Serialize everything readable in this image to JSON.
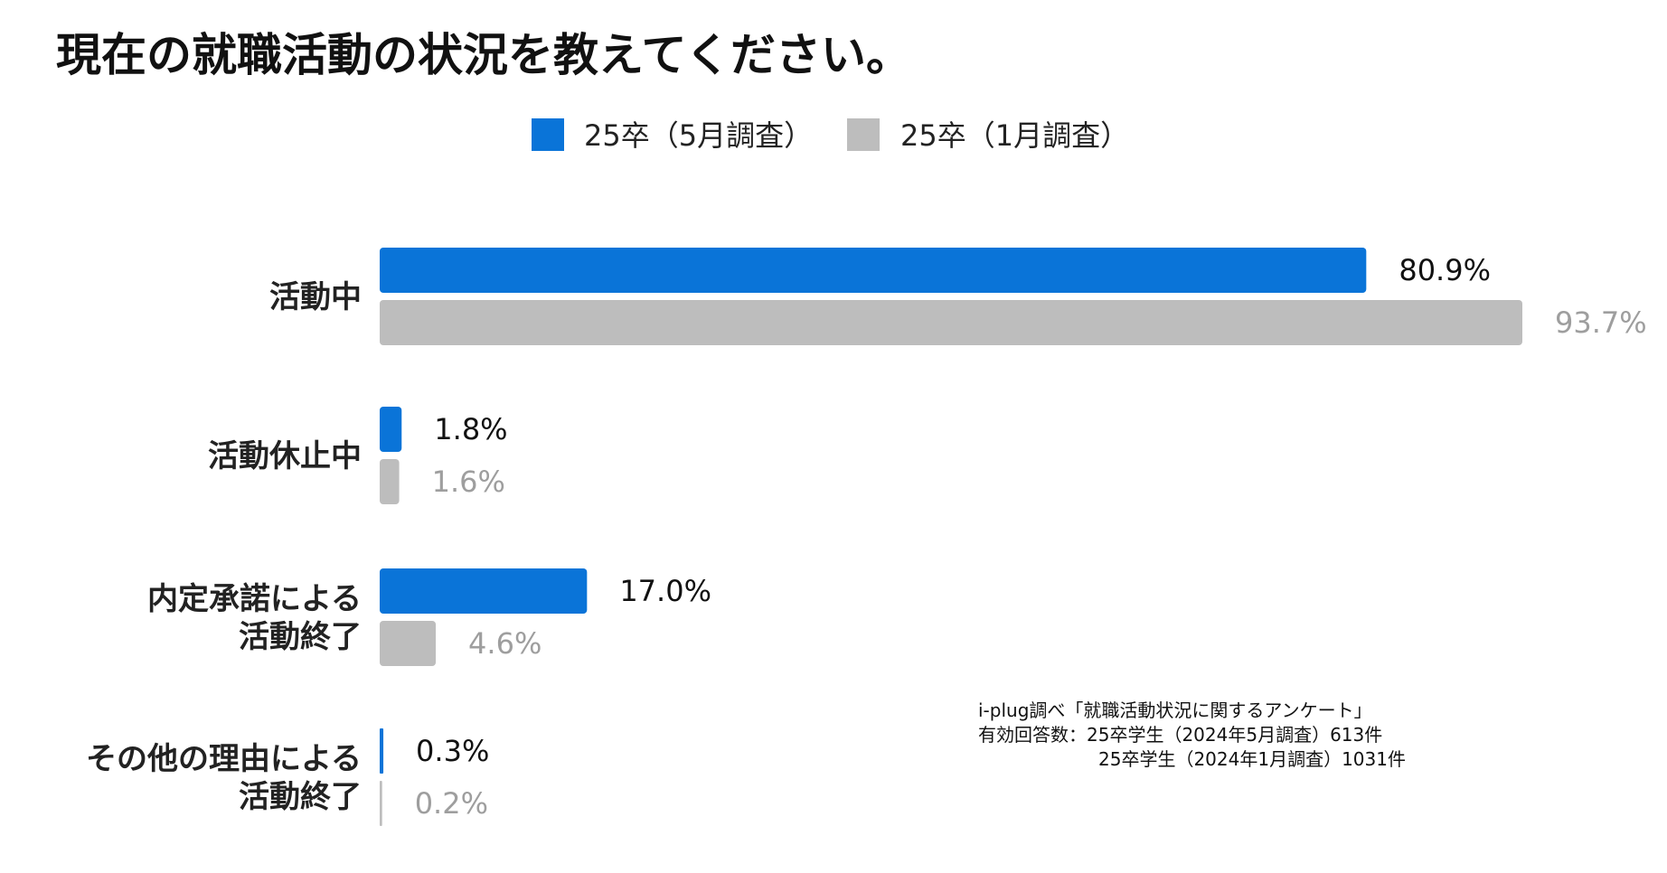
{
  "chart_data": {
    "type": "bar",
    "orientation": "horizontal",
    "title": "現在の就職活動の状況を教えてください。",
    "categories": [
      [
        "活動中"
      ],
      [
        "活動休止中"
      ],
      [
        "内定承諾による",
        "活動終了"
      ],
      [
        "その他の理由による",
        "活動終了"
      ]
    ],
    "series": [
      {
        "name": "25卒（5月調査）",
        "color": "#0a74d8",
        "values": [
          80.9,
          1.8,
          17.0,
          0.3
        ],
        "labels": [
          "80.9%",
          "1.8%",
          "17.0%",
          "0.3%"
        ]
      },
      {
        "name": "25卒（1月調査）",
        "color": "#bdbdbd",
        "values": [
          93.7,
          1.6,
          4.6,
          0.2
        ],
        "labels": [
          "93.7%",
          "1.6%",
          "4.6%",
          "0.2%"
        ]
      }
    ],
    "xlim": [
      0,
      100
    ],
    "legend_position": "top-center",
    "grid": false
  },
  "notes": [
    "i-plug調べ「就職活動状況に関するアンケート」",
    "有効回答数：25卒学生（2024年5月調査）613件",
    "25卒学生（2024年1月調査）1031件"
  ]
}
